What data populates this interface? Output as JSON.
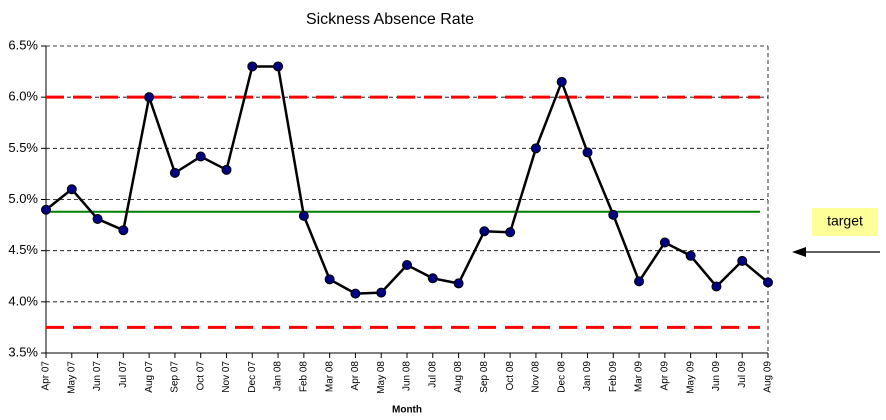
{
  "chart_data": {
    "type": "line",
    "title": "Sickness Absence Rate",
    "x_label": "Month",
    "categories": [
      "Apr 07",
      "May 07",
      "Jun 07",
      "Jul 07",
      "Aug 07",
      "Sep 07",
      "Oct 07",
      "Nov 07",
      "Dec 07",
      "Jan 08",
      "Feb 08",
      "Mar 08",
      "Apr 08",
      "May 08",
      "Jun 08",
      "Jul 08",
      "Aug 08",
      "Sep 08",
      "Oct 08",
      "Nov 08",
      "Dec 08",
      "Jan 09",
      "Feb 09",
      "Mar 09",
      "Apr 09",
      "May 09",
      "Jun 09",
      "Jul 09",
      "Aug 09"
    ],
    "series": [
      {
        "color": "#000000",
        "marker_color": "#000080",
        "values": [
          4.9,
          5.1,
          4.81,
          4.7,
          6.0,
          5.26,
          5.42,
          5.29,
          6.3,
          6.3,
          4.84,
          4.22,
          4.08,
          4.09,
          4.36,
          4.23,
          4.18,
          4.69,
          4.68,
          5.5,
          6.15,
          5.46,
          4.85,
          4.2,
          4.58,
          4.45,
          4.15,
          4.4,
          4.19
        ]
      }
    ],
    "reference_lines": [
      {
        "value": 6.0,
        "color": "#ff0000",
        "style": "dashed"
      },
      {
        "value": 4.88,
        "color": "#008000",
        "style": "solid"
      },
      {
        "value": 3.75,
        "color": "#ff0000",
        "style": "dashed"
      }
    ],
    "annotations": [
      {
        "text": "target"
      }
    ],
    "ylim": [
      3.5,
      6.5
    ],
    "yticks": [
      {
        "value": 3.5,
        "label": "3.5%"
      },
      {
        "value": 4.0,
        "label": "4.0%"
      },
      {
        "value": 4.5,
        "label": "4.5%"
      },
      {
        "value": 5.0,
        "label": "5.0%"
      },
      {
        "value": 5.5,
        "label": "5.5%"
      },
      {
        "value": 6.0,
        "label": "6.0%"
      },
      {
        "value": 6.5,
        "label": "6.5%"
      }
    ],
    "grid": true
  }
}
